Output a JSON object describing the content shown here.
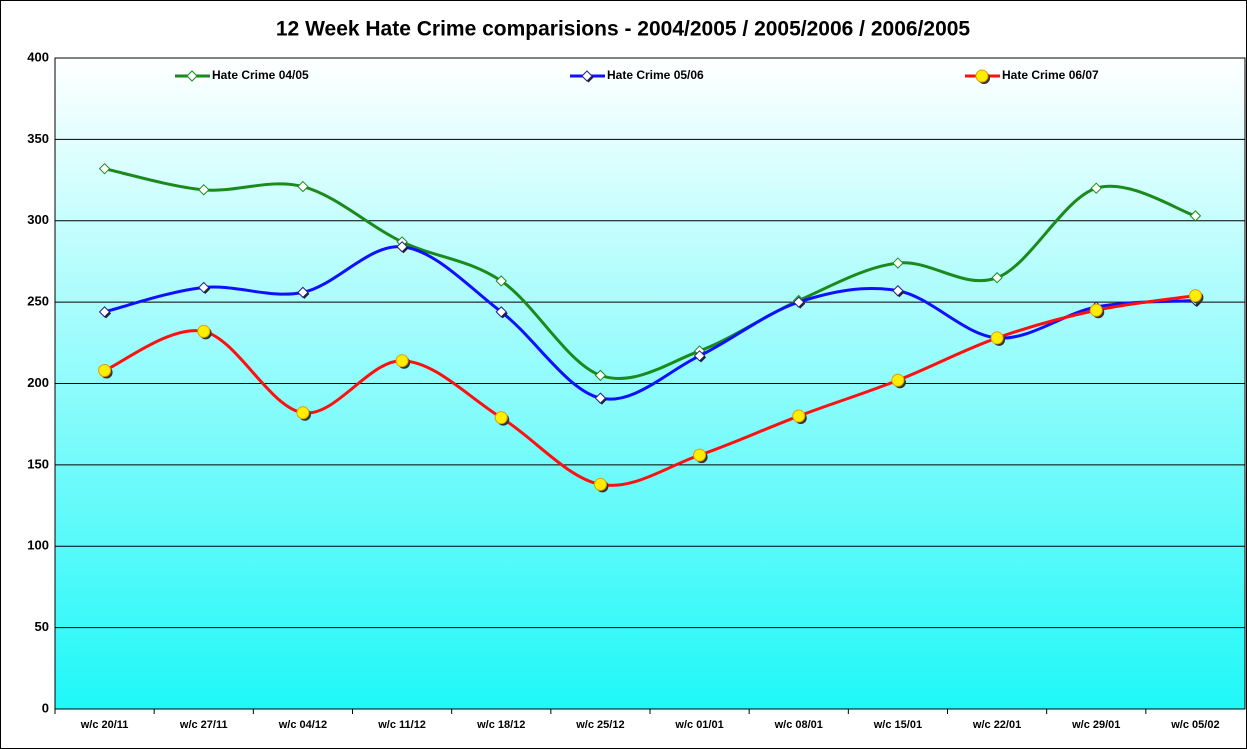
{
  "chart_data": {
    "type": "line",
    "title": "12 Week Hate Crime comparisions - 2004/2005 / 2005/2006 / 2006/2005",
    "categories": [
      "w/c 20/11",
      "w/c 27/11",
      "w/c 04/12",
      "w/c 11/12",
      "w/c 18/12",
      "w/c 25/12",
      "w/c 01/01",
      "w/c 08/01",
      "w/c 15/01",
      "w/c 22/01",
      "w/c 29/01",
      "w/c 05/02"
    ],
    "series": [
      {
        "name": "Hate Crime 04/05",
        "color": "#1a8a1a",
        "values": [
          332,
          319,
          321,
          287,
          263,
          205,
          220,
          251,
          274,
          265,
          320,
          303
        ]
      },
      {
        "name": "Hate Crime 05/06",
        "color": "#1010ff",
        "values": [
          244,
          259,
          256,
          284,
          244,
          191,
          217,
          250,
          257,
          228,
          247,
          251
        ]
      },
      {
        "name": "Hate Crime 06/07",
        "color": "#ff1010",
        "values": [
          208,
          232,
          182,
          214,
          179,
          138,
          156,
          180,
          202,
          228,
          245,
          254
        ]
      }
    ],
    "ylim": [
      0,
      400
    ],
    "yticks": [
      0,
      50,
      100,
      150,
      200,
      250,
      300,
      350,
      400
    ],
    "grid": true,
    "smooth": true
  }
}
